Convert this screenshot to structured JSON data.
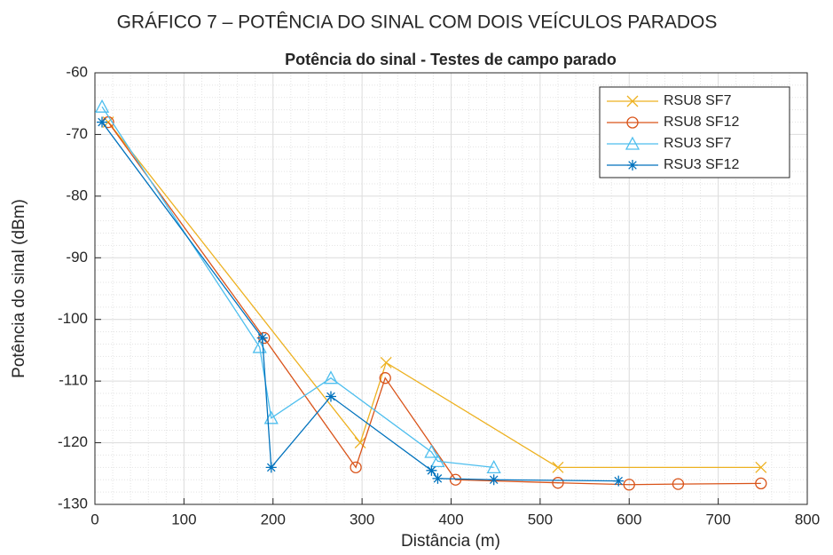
{
  "chart_data": {
    "type": "line",
    "caption": "GRÁFICO 7 – POTÊNCIA DO SINAL COM DOIS VEÍCULOS PARADOS",
    "title": "Potência do sinal - Testes de campo parado",
    "x_label": "Distância (m)",
    "y_label": "Potência do sinal (dBm)",
    "xlim": [
      0,
      800
    ],
    "ylim": [
      -130,
      -60
    ],
    "xticks": [
      0,
      100,
      200,
      300,
      400,
      500,
      600,
      700,
      800
    ],
    "yticks": [
      -130,
      -120,
      -110,
      -100,
      -90,
      -80,
      -70,
      -60
    ],
    "grid": true,
    "minor_grid": true,
    "legend": "top-right",
    "series": [
      {
        "name": "RSU8 SF7",
        "color": "#EDB120",
        "marker": "x",
        "x": [
          15,
          298,
          327,
          520,
          748
        ],
        "values": [
          -68,
          -120,
          -107,
          -124,
          -124
        ]
      },
      {
        "name": "RSU8 SF12",
        "color": "#D95319",
        "marker": "o",
        "x": [
          15,
          190,
          293,
          326,
          405,
          520,
          600,
          655,
          748
        ],
        "values": [
          -68,
          -103,
          -124,
          -109.5,
          -126,
          -126.5,
          -126.8,
          -126.7,
          -126.6
        ]
      },
      {
        "name": "RSU3 SF7",
        "color": "#4DBEEE",
        "marker": "^",
        "x": [
          8,
          185,
          198,
          265,
          378,
          385,
          448
        ],
        "values": [
          -65.5,
          -104.5,
          -116,
          -109.5,
          -121.5,
          -123,
          -124
        ]
      },
      {
        "name": "RSU3 SF12",
        "color": "#0072BD",
        "marker": "*",
        "x": [
          8,
          188,
          198,
          265,
          378,
          385,
          448,
          588
        ],
        "values": [
          -68,
          -103,
          -124,
          -112.5,
          -124.5,
          -125.8,
          -126,
          -126.2
        ]
      }
    ]
  }
}
